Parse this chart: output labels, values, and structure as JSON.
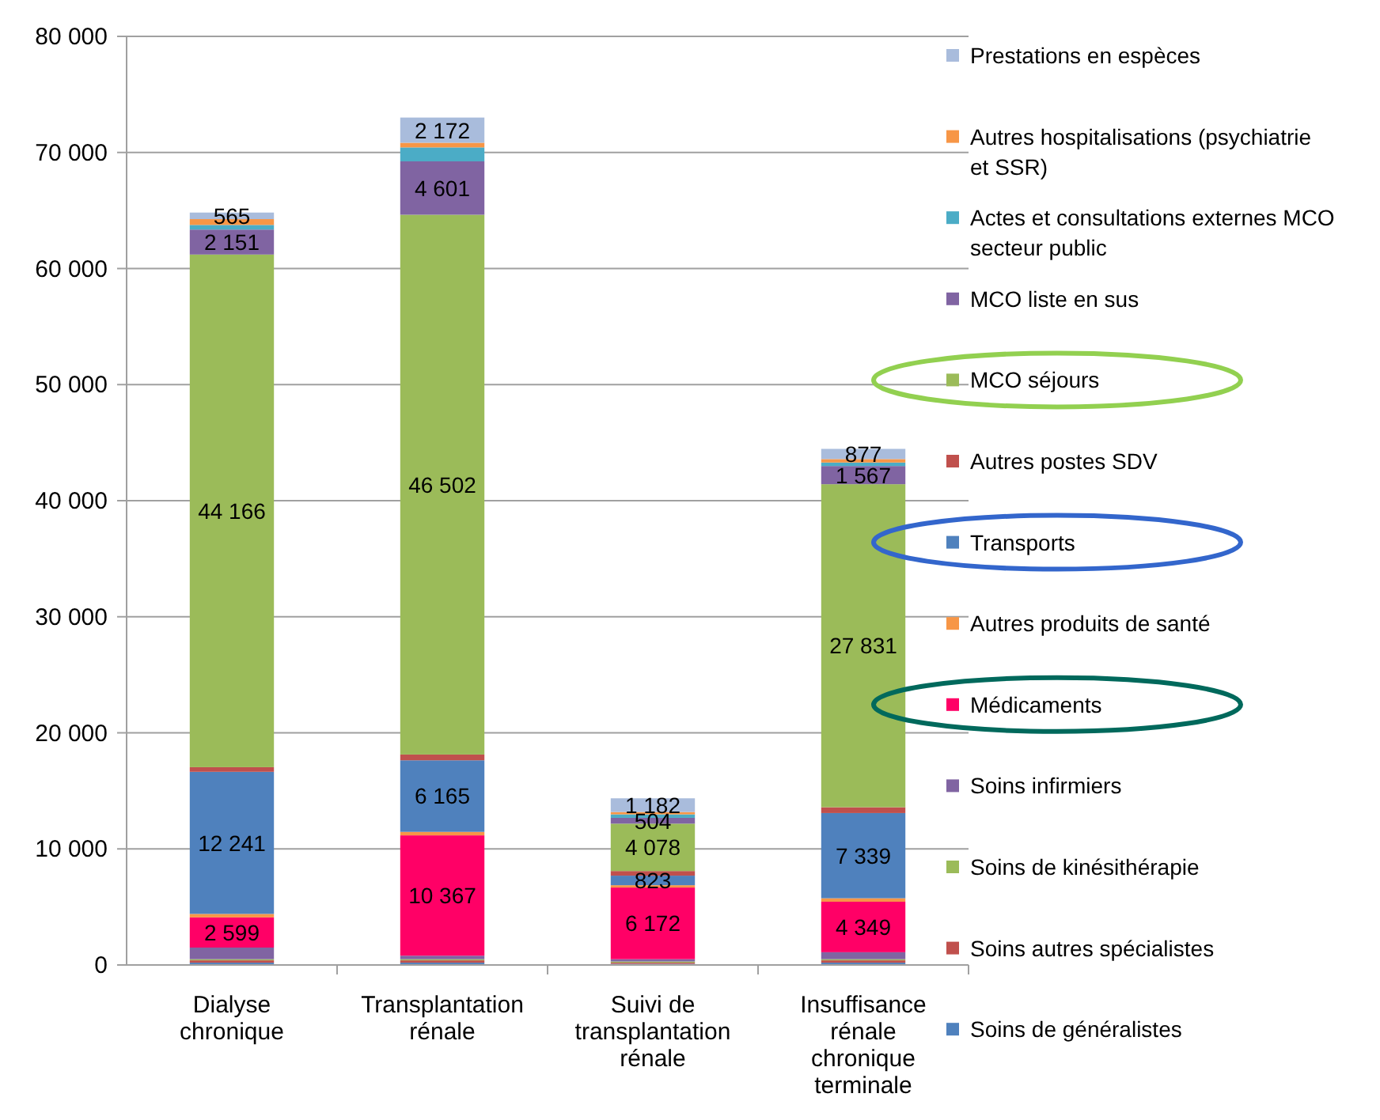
{
  "chart_data": {
    "type": "bar",
    "stacked": true,
    "categories": [
      "Dialyse chronique",
      "Transplantation rénale",
      "Suivi de transplantation rénale",
      "Insuffisance rénale chronique terminale"
    ],
    "ylim": [
      0,
      80000
    ],
    "yticks": [
      {
        "value": 0,
        "label": "0"
      },
      {
        "value": 10000,
        "label": "10 000"
      },
      {
        "value": 20000,
        "label": "20 000"
      },
      {
        "value": 30000,
        "label": "30 000"
      },
      {
        "value": 40000,
        "label": "40 000"
      },
      {
        "value": 50000,
        "label": "50 000"
      },
      {
        "value": 60000,
        "label": "60 000"
      },
      {
        "value": 70000,
        "label": "70 000"
      },
      {
        "value": 80000,
        "label": "80 000"
      }
    ],
    "grid": "y",
    "legend": "right",
    "series": [
      {
        "name": "Soins de généralistes",
        "color": "#4f81bd",
        "values": [
          200,
          200,
          100,
          200
        ]
      },
      {
        "name": "Soins autres spécialistes",
        "color": "#c0504d",
        "values": [
          200,
          200,
          100,
          200
        ]
      },
      {
        "name": "Soins de kinésithérapie",
        "color": "#9bbb59",
        "values": [
          100,
          100,
          100,
          100
        ]
      },
      {
        "name": "Soins infirmiers",
        "color": "#8064a2",
        "values": [
          1000,
          300,
          200,
          600
        ]
      },
      {
        "name": "Médicaments",
        "color": "#ff0066",
        "values": [
          2599,
          10367,
          6172,
          4349
        ],
        "value_labels": [
          "2 599",
          "10 367",
          "6 172",
          "4 349"
        ]
      },
      {
        "name": "Autres produits de santé",
        "color": "#f79646",
        "values": [
          300,
          300,
          200,
          300
        ]
      },
      {
        "name": "Transports",
        "color": "#4f81bd",
        "values": [
          12241,
          6165,
          823,
          7339
        ],
        "value_labels": [
          "12 241",
          "6 165",
          "823",
          "7 339"
        ]
      },
      {
        "name": "Autres postes SDV",
        "color": "#c0504d",
        "values": [
          400,
          500,
          400,
          500
        ]
      },
      {
        "name": "MCO séjours",
        "color": "#9bbb59",
        "values": [
          44166,
          46502,
          4078,
          27831
        ],
        "value_labels": [
          "44 166",
          "46 502",
          "4 078",
          "27 831"
        ]
      },
      {
        "name": "MCO liste en sus",
        "color": "#8064a2",
        "values": [
          2151,
          4601,
          504,
          1567
        ],
        "value_labels": [
          "2 151",
          "4 601",
          "504",
          "1 567"
        ]
      },
      {
        "name": "Actes et consultations externes MCO secteur public",
        "color": "#4bacc6",
        "values": [
          400,
          1200,
          300,
          300
        ]
      },
      {
        "name": "Autres hospitalisations (psychiatrie et SSR)",
        "color": "#f79646",
        "values": [
          500,
          400,
          200,
          300
        ]
      },
      {
        "name": "Prestations en espèces",
        "color": "#a9bcdc",
        "values": [
          565,
          2172,
          1182,
          877
        ],
        "value_labels": [
          "565",
          "2 172",
          "1 182",
          "877"
        ]
      }
    ]
  }
}
